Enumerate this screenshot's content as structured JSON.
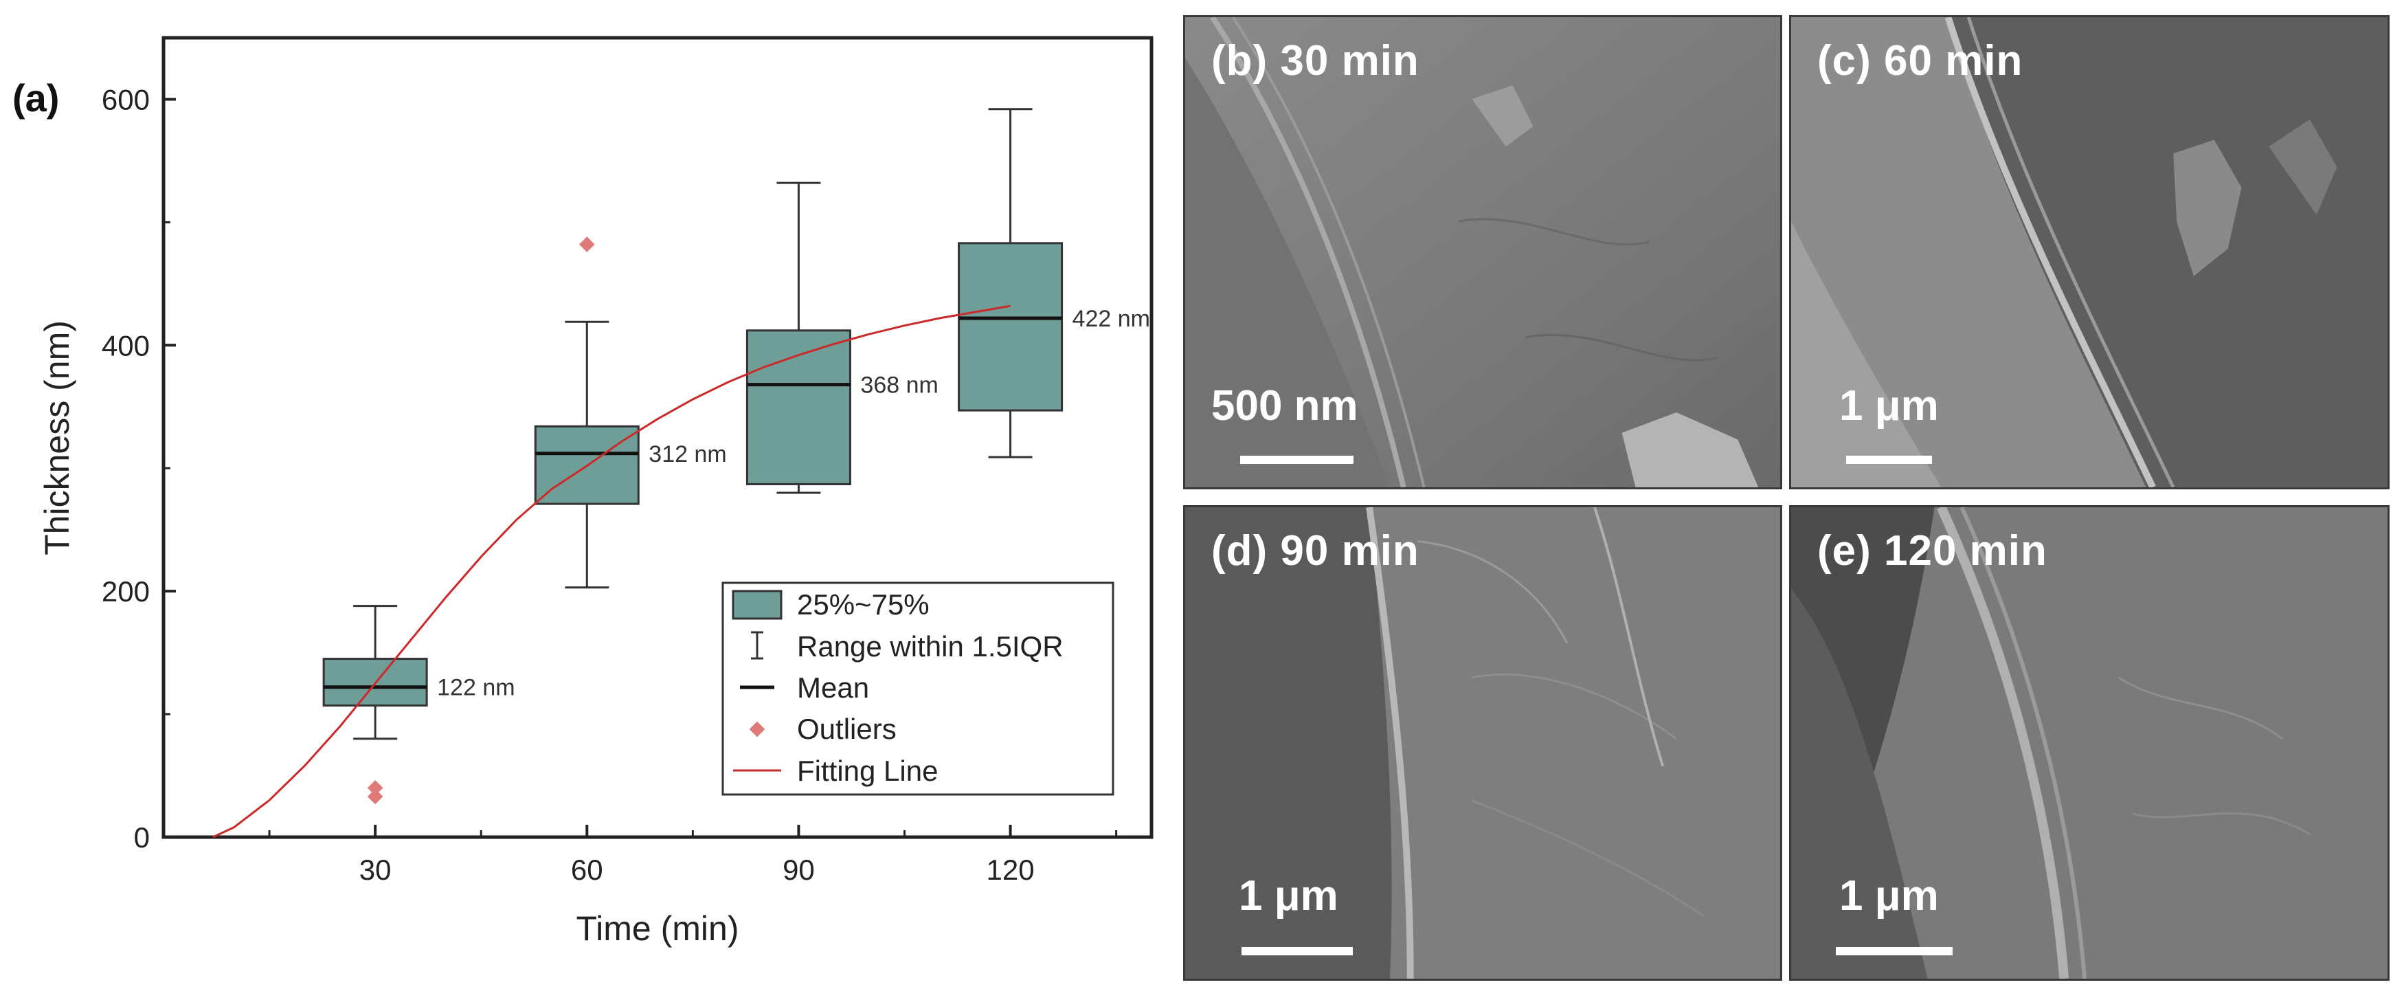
{
  "chart_data": {
    "type": "box",
    "panel_label": "(a)",
    "xlabel": "Time (min)",
    "ylabel": "Thickness (nm)",
    "xlim": [
      0,
      140
    ],
    "ylim": [
      0,
      650
    ],
    "xticks": [
      30,
      60,
      90,
      120
    ],
    "yticks": [
      0,
      200,
      400,
      600
    ],
    "box_color": "#6f9d98",
    "outlier_color": "#e07a78",
    "fit_color": "#cc2a2a",
    "boxes": [
      {
        "x": 30,
        "whisker_low": 80,
        "q1": 107,
        "mean": 122,
        "q3": 145,
        "whisker_high": 188,
        "label": "122 nm",
        "outliers": [
          33,
          40
        ]
      },
      {
        "x": 60,
        "whisker_low": 203,
        "q1": 271,
        "mean": 312,
        "q3": 334,
        "whisker_high": 419,
        "label": "312 nm",
        "outliers": [
          482
        ]
      },
      {
        "x": 90,
        "whisker_low": 280,
        "q1": 287,
        "mean": 368,
        "q3": 412,
        "whisker_high": 532,
        "label": "368 nm",
        "outliers": []
      },
      {
        "x": 120,
        "whisker_low": 309,
        "q1": 347,
        "mean": 422,
        "q3": 483,
        "whisker_high": 592,
        "label": "422 nm",
        "outliers": []
      }
    ],
    "fitting_line": {
      "x": [
        7,
        10,
        15,
        20,
        25,
        30,
        35,
        40,
        45,
        50,
        55,
        60,
        65,
        70,
        75,
        80,
        85,
        90,
        95,
        100,
        105,
        110,
        115,
        120
      ],
      "y": [
        0,
        8,
        30,
        58,
        90,
        125,
        160,
        195,
        228,
        258,
        283,
        302,
        322,
        340,
        356,
        370,
        382,
        392,
        401,
        409,
        416,
        422,
        427,
        432
      ]
    },
    "legend": {
      "placement": "bottom-right",
      "items": [
        "25%~75%",
        "Range within 1.5IQR",
        "Mean",
        "Outliers",
        "Fitting Line"
      ]
    }
  },
  "images": [
    {
      "label": "(b) 30 min",
      "scale": "500 nm"
    },
    {
      "label": "(c) 60 min",
      "scale": "1 μm"
    },
    {
      "label": "(d) 90 min",
      "scale": "1 μm"
    },
    {
      "label": "(e) 120 min",
      "scale": "1 μm"
    }
  ]
}
